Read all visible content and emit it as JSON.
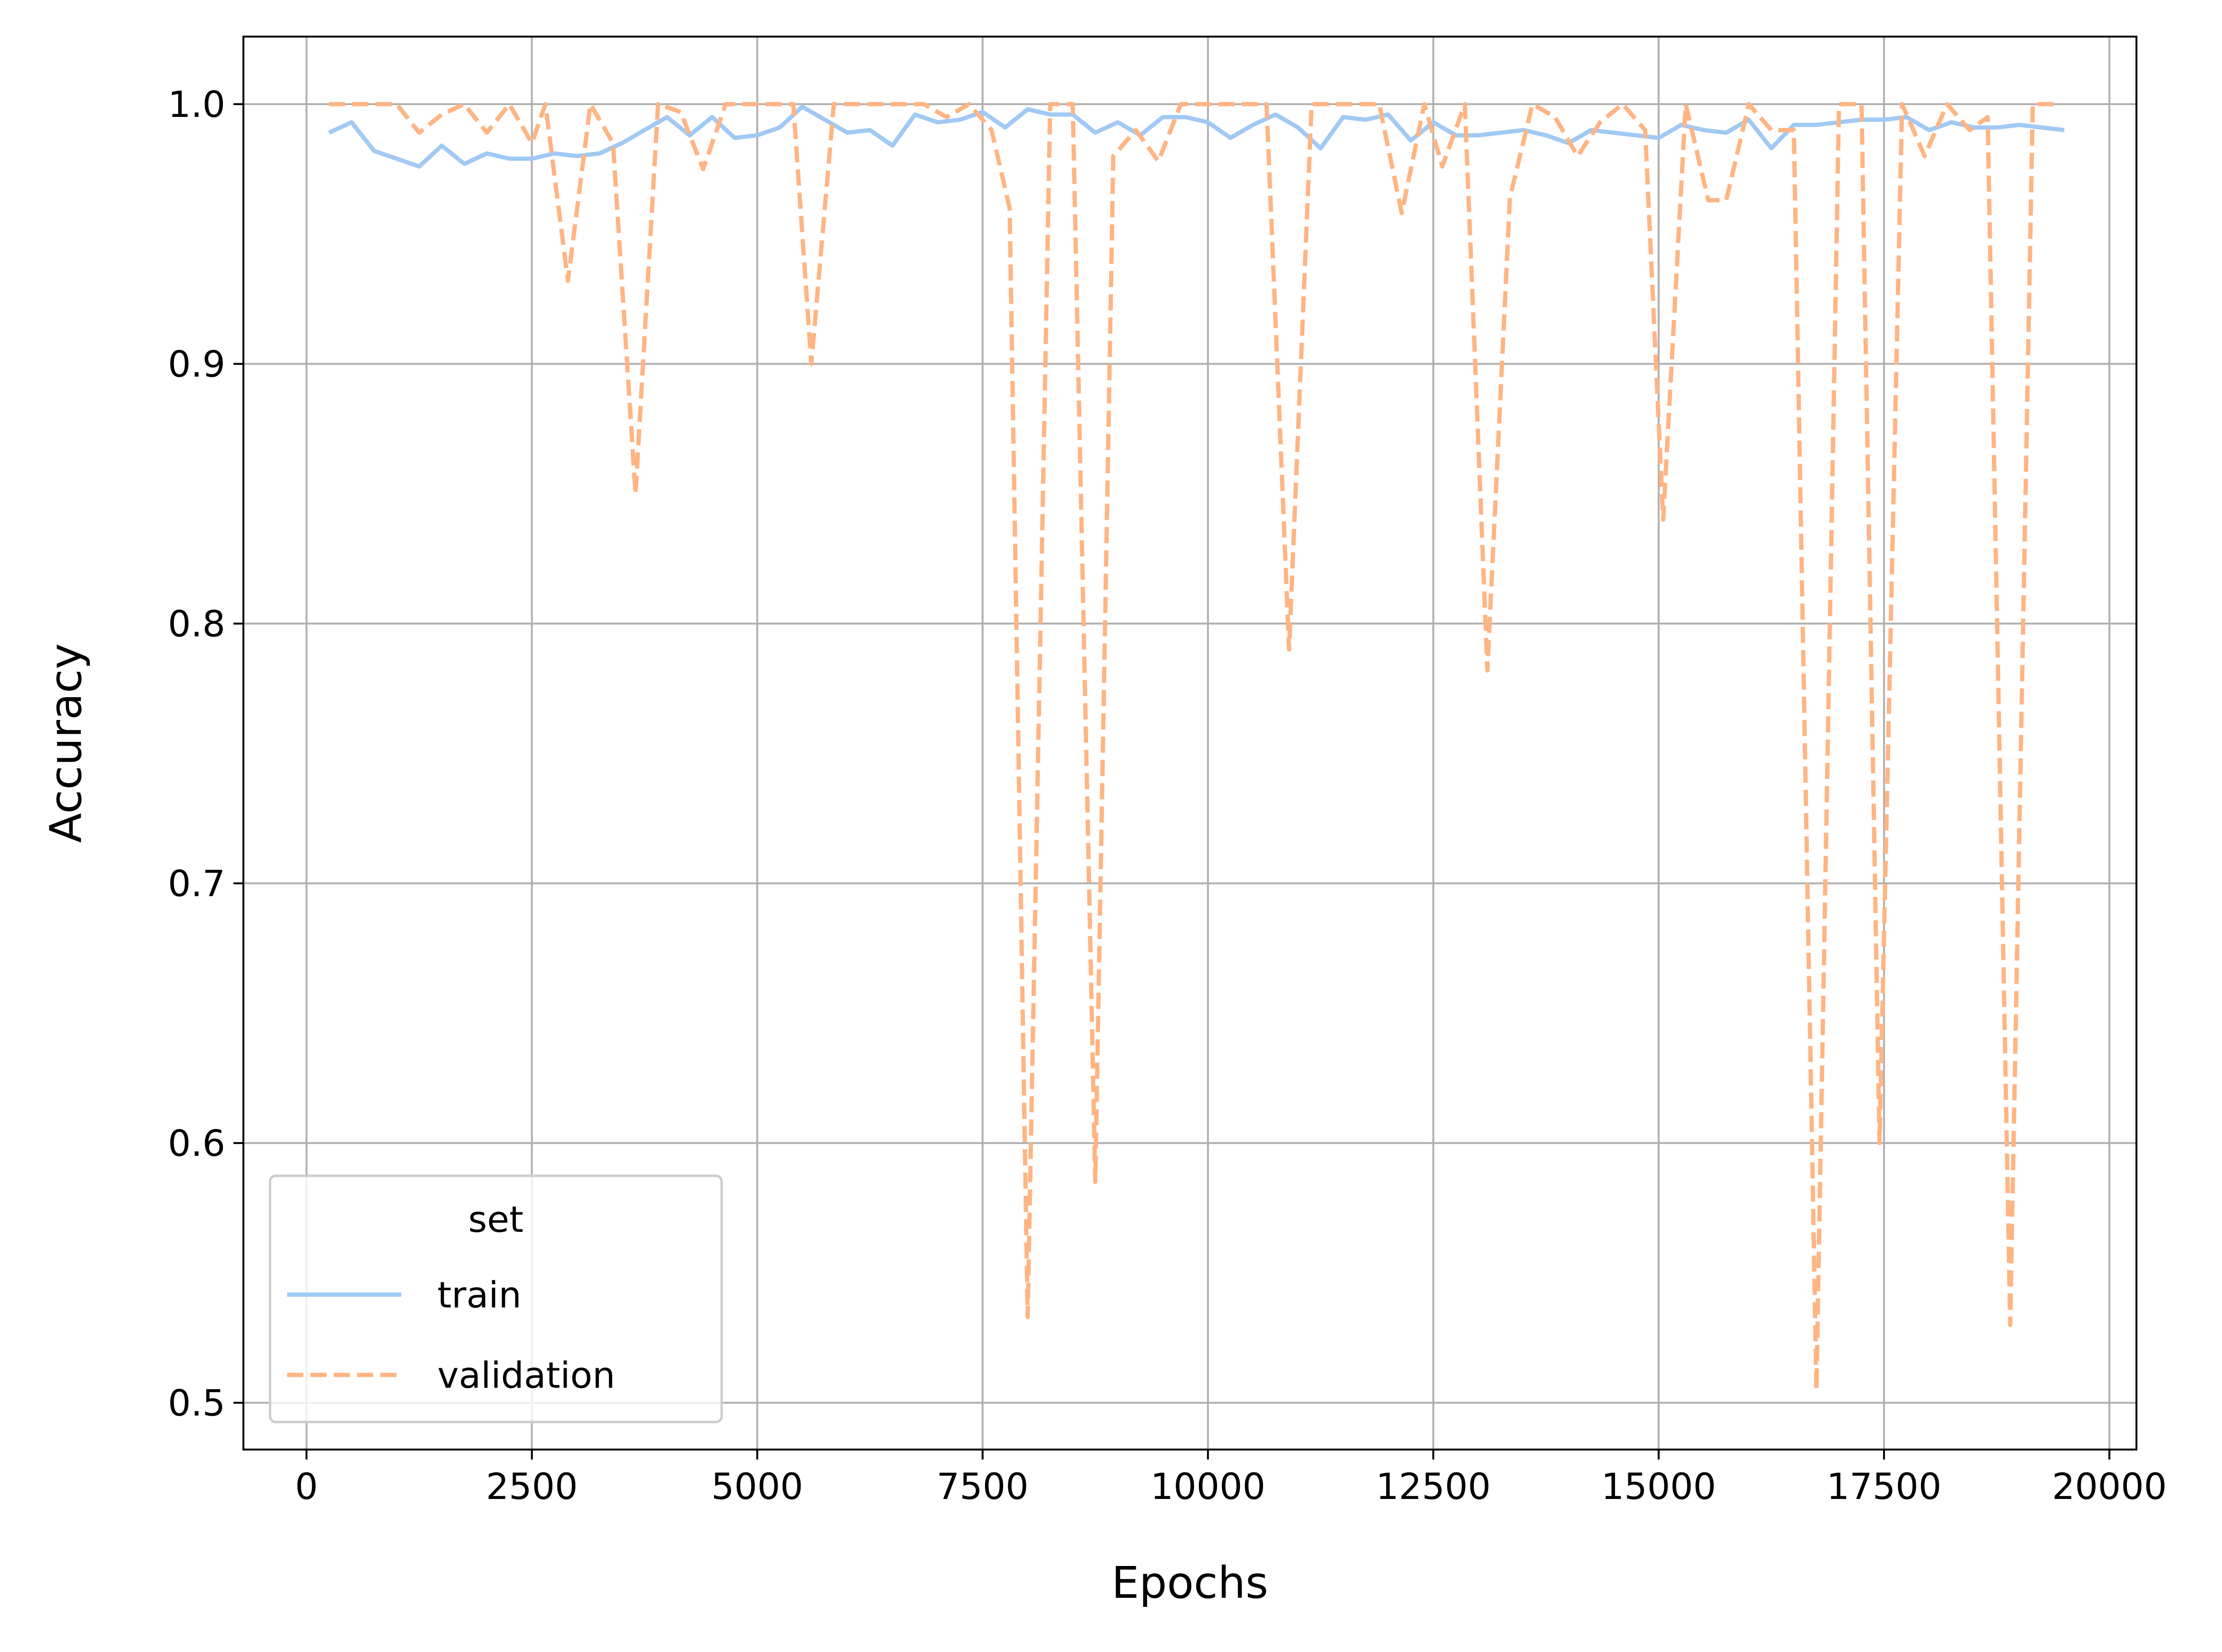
{
  "chart_data": {
    "type": "line",
    "title": "",
    "xlabel": "Epochs",
    "ylabel": "Accuracy",
    "xlim": [
      -700,
      20300
    ],
    "ylim": [
      0.482,
      1.026
    ],
    "xticks": [
      0,
      2500,
      5000,
      7500,
      10000,
      12500,
      15000,
      17500,
      20000
    ],
    "yticks": [
      0.5,
      0.6,
      0.7,
      0.8,
      0.9,
      1.0
    ],
    "xtick_labels": [
      "0",
      "2500",
      "5000",
      "7500",
      "10000",
      "12500",
      "15000",
      "17500",
      "20000"
    ],
    "ytick_labels": [
      "0.5",
      "0.6",
      "0.7",
      "0.8",
      "0.9",
      "1.0"
    ],
    "grid": true,
    "legend": {
      "title": "set",
      "placement": "lower-left"
    },
    "series": [
      {
        "name": "train",
        "color": "#a1c9f4",
        "style": "solid",
        "x": [
          250,
          500,
          750,
          1000,
          1250,
          1500,
          1750,
          2000,
          2250,
          2500,
          2750,
          3000,
          3250,
          3500,
          3750,
          4000,
          4250,
          4500,
          4750,
          5000,
          5250,
          5500,
          5750,
          6000,
          6250,
          6500,
          6750,
          7000,
          7250,
          7500,
          7750,
          8000,
          8250,
          8500,
          8750,
          9000,
          9250,
          9500,
          9750,
          10000,
          10250,
          10500,
          10750,
          11000,
          11250,
          11500,
          11750,
          12000,
          12250,
          12500,
          12750,
          13000,
          13250,
          13500,
          13750,
          14000,
          14250,
          14500,
          14750,
          15000,
          15250,
          15500,
          15750,
          16000,
          16250,
          16500,
          16750,
          17000,
          17250,
          17500,
          17750,
          18000,
          18250,
          18500,
          18750,
          19000,
          19250,
          19500
        ],
        "y": [
          0.989,
          0.993,
          0.982,
          0.979,
          0.976,
          0.984,
          0.977,
          0.981,
          0.979,
          0.979,
          0.981,
          0.98,
          0.981,
          0.985,
          0.99,
          0.995,
          0.988,
          0.995,
          0.987,
          0.988,
          0.991,
          0.999,
          0.994,
          0.989,
          0.99,
          0.984,
          0.996,
          0.993,
          0.994,
          0.997,
          0.991,
          0.998,
          0.996,
          0.996,
          0.989,
          0.993,
          0.988,
          0.995,
          0.995,
          0.993,
          0.987,
          0.992,
          0.996,
          0.991,
          0.983,
          0.995,
          0.994,
          0.996,
          0.986,
          0.993,
          0.988,
          0.988,
          0.989,
          0.99,
          0.988,
          0.985,
          0.99,
          0.989,
          0.988,
          0.987,
          0.992,
          0.99,
          0.989,
          0.994,
          0.983,
          0.992,
          0.992,
          0.993,
          0.994,
          0.994,
          0.995,
          0.99,
          0.993,
          0.991,
          0.991,
          0.992,
          0.991,
          0.99
        ]
      },
      {
        "name": "validation",
        "color": "#ffb482",
        "style": "dashed",
        "x": [
          250,
          500,
          750,
          1000,
          1250,
          1500,
          1750,
          2000,
          2250,
          2500,
          2650,
          2900,
          3150,
          3400,
          3650,
          3900,
          4150,
          4400,
          4650,
          4900,
          5150,
          5400,
          5600,
          5850,
          6100,
          6350,
          6600,
          6850,
          7100,
          7350,
          7600,
          7800,
          8000,
          8250,
          8500,
          8750,
          8950,
          9200,
          9450,
          9700,
          9950,
          10200,
          10450,
          10650,
          10900,
          11150,
          11400,
          11650,
          11900,
          12150,
          12400,
          12600,
          12850,
          13100,
          13350,
          13600,
          13850,
          14100,
          14350,
          14600,
          14850,
          15050,
          15300,
          15550,
          15750,
          16000,
          16250,
          16500,
          16750,
          17000,
          17250,
          17450,
          17700,
          17950,
          18200,
          18450,
          18650,
          18900,
          19150,
          19400
        ],
        "y": [
          1.0,
          1.0,
          1.0,
          1.0,
          0.989,
          0.996,
          1.0,
          0.989,
          1.0,
          0.985,
          1.0,
          0.932,
          1.0,
          0.985,
          0.85,
          1.0,
          0.997,
          0.975,
          1.0,
          1.0,
          1.0,
          1.0,
          0.9,
          1.0,
          1.0,
          1.0,
          1.0,
          1.0,
          0.995,
          1.0,
          0.99,
          0.96,
          0.533,
          1.0,
          1.0,
          0.585,
          0.98,
          0.99,
          0.978,
          1.0,
          1.0,
          1.0,
          1.0,
          1.0,
          0.79,
          1.0,
          1.0,
          1.0,
          1.0,
          0.958,
          1.0,
          0.976,
          1.0,
          0.782,
          0.964,
          1.0,
          0.995,
          0.98,
          0.993,
          1.0,
          0.99,
          0.84,
          1.0,
          0.963,
          0.963,
          1.0,
          0.99,
          0.99,
          0.505,
          1.0,
          1.0,
          0.6,
          1.0,
          0.98,
          1.0,
          0.99,
          0.995,
          0.53,
          1.0,
          1.0
        ]
      }
    ]
  }
}
